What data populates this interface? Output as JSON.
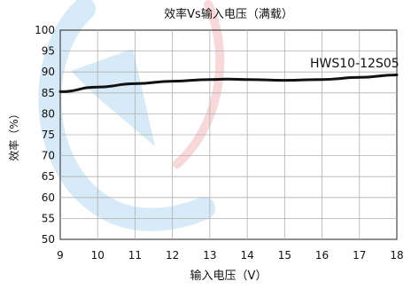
{
  "chart_data": {
    "type": "line",
    "title": "效率Vs输入电压（满载）",
    "xlabel": "输入电压（V）",
    "ylabel": "效率（%）",
    "xlim": [
      9,
      18
    ],
    "ylim": [
      50,
      100
    ],
    "x_ticks": [
      9,
      10,
      11,
      12,
      13,
      14,
      15,
      16,
      17,
      18
    ],
    "y_ticks": [
      50,
      55,
      60,
      65,
      70,
      75,
      80,
      85,
      90,
      95,
      100
    ],
    "grid": true,
    "series": [
      {
        "name": "HWS10-12S05",
        "color": "#111111",
        "x": [
          9,
          10,
          11,
          12,
          13,
          13.5,
          14,
          15,
          16,
          17,
          18
        ],
        "y": [
          85.3,
          86.4,
          87.2,
          87.8,
          88.2,
          88.3,
          88.2,
          88.0,
          88.2,
          88.7,
          89.3
        ]
      }
    ]
  }
}
